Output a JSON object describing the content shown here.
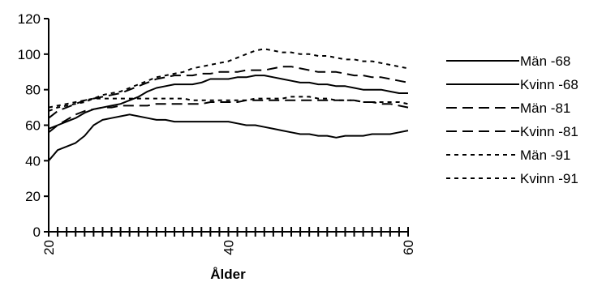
{
  "chart_data": {
    "type": "line",
    "title": "",
    "xlabel": "Ålder",
    "ylabel": "",
    "xlim": [
      20,
      60
    ],
    "ylim": [
      0,
      120
    ],
    "x_ticks": [
      20,
      40,
      60
    ],
    "y_ticks": [
      0,
      20,
      40,
      60,
      80,
      100,
      120
    ],
    "x_minor_step": 1,
    "grid": false,
    "legend_position": "right",
    "series": [
      {
        "name": "Män -68",
        "dash": "solid",
        "color": "#000000",
        "x": [
          20,
          21,
          22,
          23,
          24,
          25,
          26,
          27,
          28,
          29,
          30,
          31,
          32,
          33,
          34,
          35,
          36,
          37,
          38,
          39,
          40,
          41,
          42,
          43,
          44,
          45,
          46,
          47,
          48,
          49,
          50,
          51,
          52,
          53,
          54,
          55,
          56,
          57,
          58,
          59,
          60
        ],
        "y": [
          58,
          60,
          62,
          64,
          67,
          69,
          70,
          71,
          72,
          74,
          76,
          79,
          81,
          82,
          83,
          83,
          83,
          84,
          86,
          86,
          86,
          87,
          87,
          88,
          88,
          87,
          86,
          85,
          84,
          84,
          83,
          83,
          82,
          82,
          81,
          80,
          80,
          80,
          79,
          78,
          78
        ]
      },
      {
        "name": "Kvinn -68",
        "dash": "solid",
        "color": "#000000",
        "x": [
          20,
          21,
          22,
          23,
          24,
          25,
          26,
          27,
          28,
          29,
          30,
          31,
          32,
          33,
          34,
          35,
          36,
          37,
          38,
          39,
          40,
          41,
          42,
          43,
          44,
          45,
          46,
          47,
          48,
          49,
          50,
          51,
          52,
          53,
          54,
          55,
          56,
          57,
          58,
          59,
          60
        ],
        "y": [
          40,
          46,
          48,
          50,
          54,
          60,
          63,
          64,
          65,
          66,
          65,
          64,
          63,
          63,
          62,
          62,
          62,
          62,
          62,
          62,
          62,
          61,
          60,
          60,
          59,
          58,
          57,
          56,
          55,
          55,
          54,
          54,
          53,
          54,
          54,
          54,
          55,
          55,
          55,
          56,
          57
        ]
      },
      {
        "name": "Män -81",
        "dash": "long",
        "color": "#000000",
        "x": [
          20,
          21,
          22,
          23,
          24,
          25,
          26,
          27,
          28,
          29,
          30,
          31,
          32,
          33,
          34,
          35,
          36,
          37,
          38,
          39,
          40,
          41,
          42,
          43,
          44,
          45,
          46,
          47,
          48,
          49,
          50,
          51,
          52,
          53,
          54,
          55,
          56,
          57,
          58,
          59,
          60
        ],
        "y": [
          64,
          68,
          70,
          72,
          74,
          75,
          76,
          77,
          78,
          80,
          82,
          84,
          86,
          87,
          88,
          88,
          88,
          89,
          89,
          90,
          90,
          90,
          91,
          91,
          91,
          92,
          93,
          93,
          92,
          91,
          90,
          90,
          90,
          89,
          88,
          88,
          87,
          87,
          86,
          85,
          84
        ]
      },
      {
        "name": "Kvinn -81",
        "dash": "long",
        "color": "#000000",
        "x": [
          20,
          21,
          22,
          23,
          24,
          25,
          26,
          27,
          28,
          29,
          30,
          31,
          32,
          33,
          34,
          35,
          36,
          37,
          38,
          39,
          40,
          41,
          42,
          43,
          44,
          45,
          46,
          47,
          48,
          49,
          50,
          51,
          52,
          53,
          54,
          55,
          56,
          57,
          58,
          59,
          60
        ],
        "y": [
          56,
          60,
          63,
          66,
          68,
          69,
          70,
          70,
          71,
          71,
          71,
          71,
          72,
          72,
          72,
          72,
          72,
          72,
          73,
          73,
          73,
          73,
          74,
          74,
          74,
          74,
          74,
          74,
          74,
          74,
          74,
          74,
          74,
          74,
          74,
          73,
          73,
          72,
          72,
          71,
          70
        ]
      },
      {
        "name": "Män -91",
        "dash": "short",
        "color": "#000000",
        "x": [
          20,
          21,
          22,
          23,
          24,
          25,
          26,
          27,
          28,
          29,
          30,
          31,
          32,
          33,
          34,
          35,
          36,
          37,
          38,
          39,
          40,
          41,
          42,
          43,
          44,
          45,
          46,
          47,
          48,
          49,
          50,
          51,
          52,
          53,
          54,
          55,
          56,
          57,
          58,
          59,
          60
        ],
        "y": [
          68,
          70,
          71,
          72,
          73,
          75,
          77,
          78,
          79,
          81,
          83,
          85,
          87,
          88,
          89,
          90,
          92,
          93,
          94,
          95,
          96,
          98,
          100,
          102,
          103,
          102,
          101,
          101,
          100,
          100,
          99,
          99,
          98,
          97,
          97,
          96,
          96,
          95,
          94,
          93,
          92
        ]
      },
      {
        "name": "Kvinn -91",
        "dash": "short",
        "color": "#000000",
        "x": [
          20,
          21,
          22,
          23,
          24,
          25,
          26,
          27,
          28,
          29,
          30,
          31,
          32,
          33,
          34,
          35,
          36,
          37,
          38,
          39,
          40,
          41,
          42,
          43,
          44,
          45,
          46,
          47,
          48,
          49,
          50,
          51,
          52,
          53,
          54,
          55,
          56,
          57,
          58,
          59,
          60
        ],
        "y": [
          70,
          71,
          72,
          73,
          74,
          75,
          75,
          75,
          75,
          75,
          75,
          75,
          75,
          75,
          75,
          75,
          74,
          74,
          74,
          74,
          74,
          74,
          74,
          75,
          75,
          75,
          75,
          76,
          76,
          76,
          75,
          75,
          74,
          74,
          74,
          73,
          73,
          73,
          73,
          73,
          72
        ]
      }
    ]
  }
}
